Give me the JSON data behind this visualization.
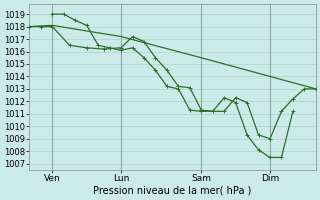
{
  "background_color": "#cceae7",
  "grid_color": "#aad4d0",
  "line_color": "#2d6e2d",
  "title": "Pression niveau de la mer( hPa )",
  "yticks": [
    1007,
    1008,
    1009,
    1010,
    1011,
    1012,
    1013,
    1014,
    1015,
    1016,
    1017,
    1018,
    1019
  ],
  "ylim": [
    1006.5,
    1019.8
  ],
  "xlim": [
    0,
    100
  ],
  "xtick_positions": [
    8,
    32,
    60,
    84
  ],
  "xtick_labels": [
    "Ven",
    "Lun",
    "Sam",
    "Dim"
  ],
  "series_straight_x": [
    0,
    8,
    32,
    60,
    84,
    100
  ],
  "series_straight_y": [
    1018.0,
    1018.1,
    1017.2,
    1015.5,
    1014.0,
    1013.0
  ],
  "series_mid_x": [
    0,
    4,
    8,
    14,
    20,
    26,
    32,
    36,
    40,
    44,
    48,
    52,
    56,
    60,
    64,
    68,
    72,
    76,
    80,
    84,
    88,
    92,
    96,
    100
  ],
  "series_mid_y": [
    1018.0,
    1018.0,
    1018.0,
    1016.5,
    1016.3,
    1016.2,
    1016.3,
    1017.2,
    1016.8,
    1015.5,
    1014.5,
    1013.2,
    1013.1,
    1011.3,
    1011.2,
    1011.2,
    1012.3,
    1011.9,
    1009.3,
    1009.0,
    1011.2,
    1012.2,
    1013.0,
    1013.0
  ],
  "series_low_x": [
    8,
    12,
    16,
    20,
    24,
    28,
    32,
    36,
    40,
    44,
    48,
    52,
    56,
    60,
    64,
    68,
    72,
    76,
    80,
    84,
    88,
    92
  ],
  "series_low_y": [
    1019.0,
    1019.0,
    1018.5,
    1018.1,
    1016.5,
    1016.3,
    1016.1,
    1016.3,
    1015.5,
    1014.5,
    1013.2,
    1013.0,
    1011.3,
    1011.2,
    1011.2,
    1012.3,
    1011.9,
    1009.3,
    1008.1,
    1007.5,
    1007.5,
    1011.2
  ]
}
